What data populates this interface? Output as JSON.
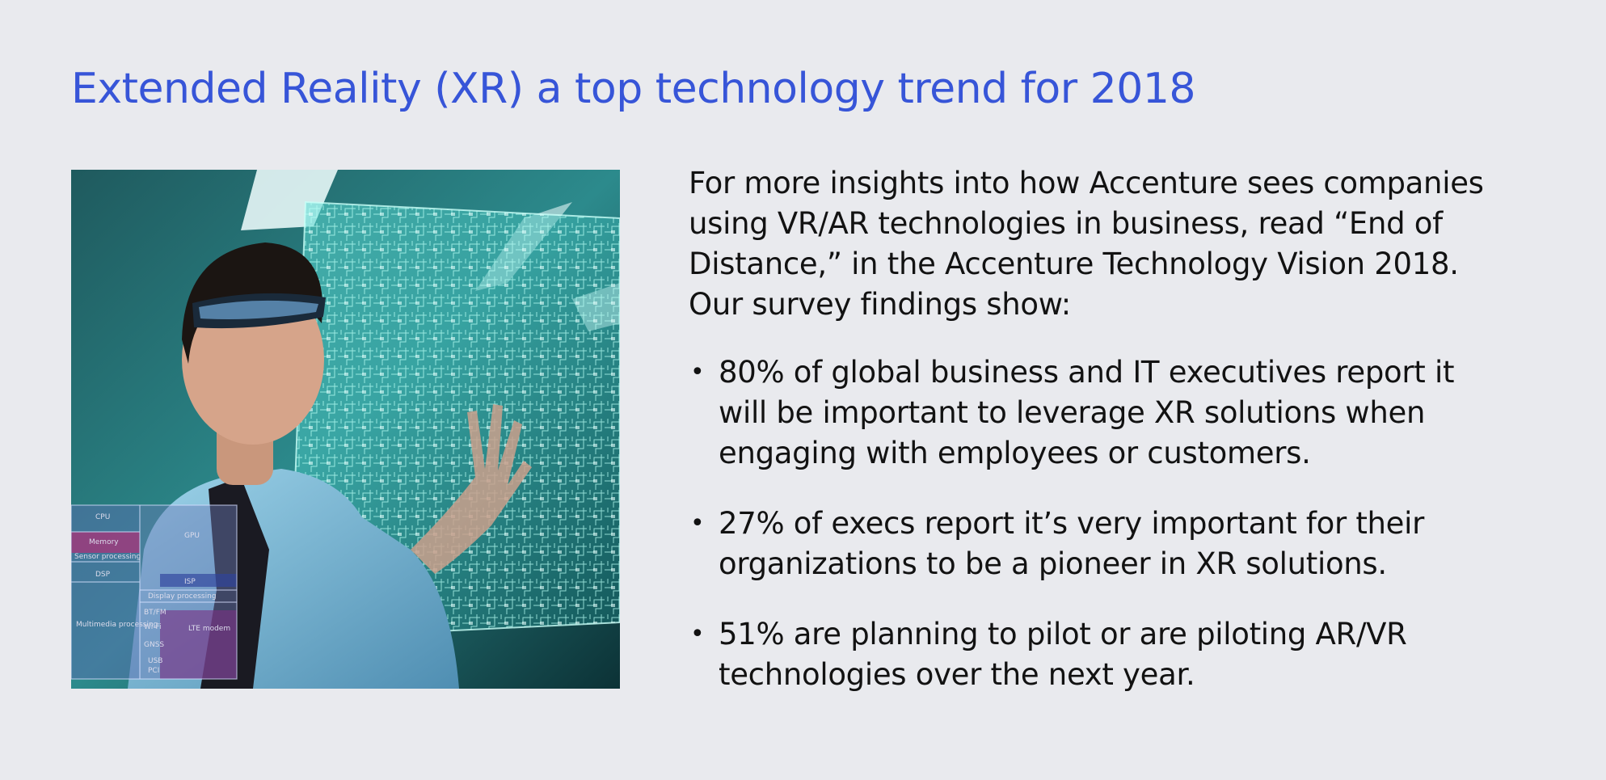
{
  "slide": {
    "title": "Extended Reality (XR) a top technology trend for 2018",
    "intro": "For more insights into how Accenture sees companies using VR/AR technologies in business, read “End of Distance,” in the Accenture Technology Vision 2018. Our survey findings show:",
    "bullets": [
      "80% of global business and IT executives report it will be important to leverage XR solutions when engaging with employees or customers.",
      "27% of execs report it’s very important for their organizations to be a pioneer in XR solutions.",
      "51% are planning to pilot or are piloting AR/VR technologies over the next year."
    ],
    "bullet_marker": "•"
  },
  "photo": {
    "chip_labels": [
      "CPU",
      "Memory",
      "Sensor processing",
      "DSP",
      "Multimedia processing",
      "GPU",
      "ISP",
      "Display processing",
      "BT/FM",
      "Wi-Fi",
      "GNSS",
      "LTE modem",
      "USB",
      "PCI"
    ]
  },
  "colors": {
    "background": "#e9eaee",
    "title": "#3755d8",
    "text": "#121212"
  }
}
